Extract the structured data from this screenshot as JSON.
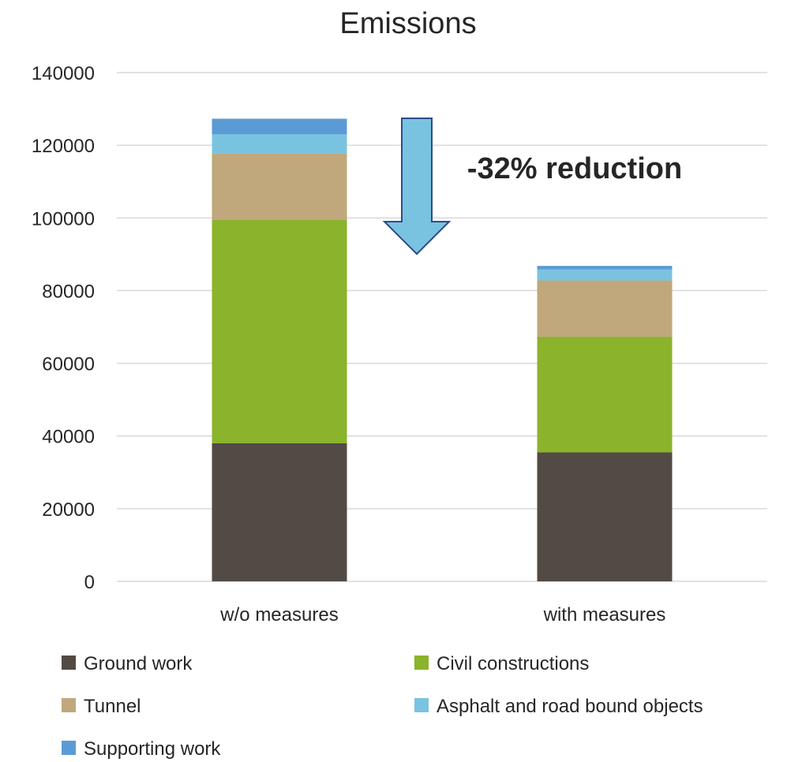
{
  "chart_data": {
    "type": "bar",
    "stacked": true,
    "title": "Emissions",
    "xlabel": "",
    "ylabel": "",
    "ylim": [
      0,
      140000
    ],
    "yticks": [
      0,
      20000,
      40000,
      60000,
      80000,
      100000,
      120000,
      140000
    ],
    "categories": [
      "w/o measures",
      "with measures"
    ],
    "series": [
      {
        "name": "Ground work",
        "color": "#524a44",
        "values": [
          38000,
          35500
        ]
      },
      {
        "name": "Civil constructions",
        "color": "#8bb32c",
        "values": [
          61500,
          31800
        ]
      },
      {
        "name": "Tunnel",
        "color": "#c0a77c",
        "values": [
          18300,
          15500
        ]
      },
      {
        "name": "Asphalt and road bound objects",
        "color": "#7ac3e0",
        "values": [
          5200,
          3000
        ]
      },
      {
        "name": "Supporting work",
        "color": "#5b9bd5",
        "values": [
          4300,
          1000
        ]
      }
    ],
    "grid": true,
    "legend_position": "bottom",
    "annotation": {
      "text": "-32% reduction",
      "arrow_color": "#7ac3e0",
      "arrow_border": "#2e4a8a"
    }
  }
}
